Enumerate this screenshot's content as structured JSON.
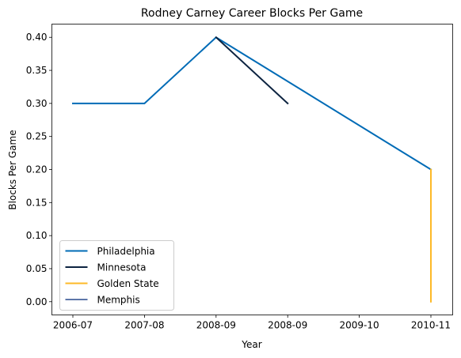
{
  "chart_data": {
    "type": "line",
    "title": "Rodney Carney Career Blocks Per Game",
    "xlabel": "Year",
    "ylabel": "Blocks Per Game",
    "categories": [
      "2006-07",
      "2007-08",
      "2008-09",
      "2008-09",
      "2009-10",
      "2010-11"
    ],
    "ylim": [
      -0.02,
      0.42
    ],
    "yticks": [
      0.0,
      0.05,
      0.1,
      0.15,
      0.2,
      0.25,
      0.3,
      0.35,
      0.4
    ],
    "ytick_labels": [
      "0.00",
      "0.05",
      "0.10",
      "0.15",
      "0.20",
      "0.25",
      "0.30",
      "0.35",
      "0.40"
    ],
    "grid": false,
    "legend": "lower-left",
    "series": [
      {
        "name": "Philadelphia",
        "color": "#006BB6",
        "points": [
          [
            0,
            0.3
          ],
          [
            1,
            0.3
          ],
          [
            2,
            0.4
          ],
          [
            5,
            0.2
          ]
        ]
      },
      {
        "name": "Minnesota",
        "color": "#0C2340",
        "points": [
          [
            2,
            0.4
          ],
          [
            3,
            0.3
          ]
        ]
      },
      {
        "name": "Golden State",
        "color": "#FDB927",
        "points": [
          [
            5,
            0.2
          ],
          [
            5,
            0.0
          ]
        ]
      },
      {
        "name": "Memphis",
        "color": "#5D76A9",
        "points": []
      }
    ]
  }
}
